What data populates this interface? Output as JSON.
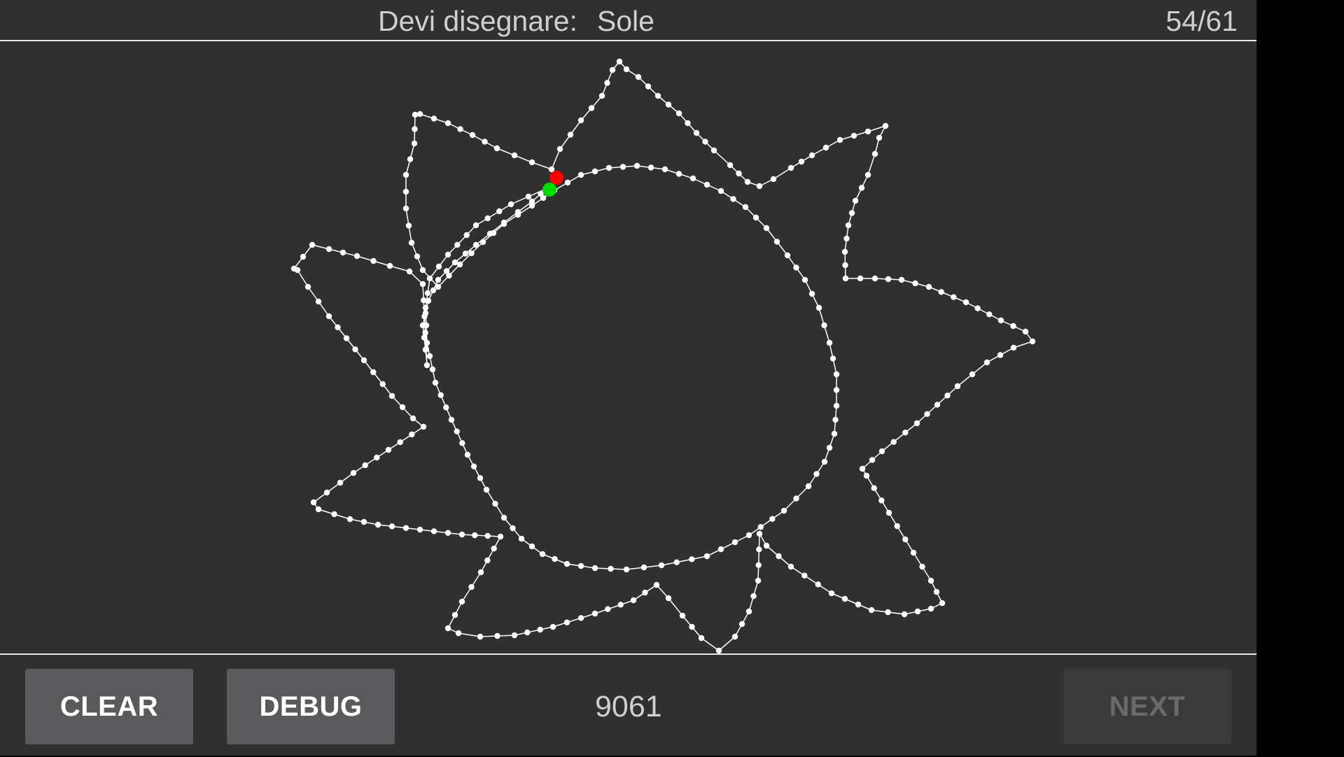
{
  "header": {
    "prompt_label": "Devi disegnare:",
    "target_word": "Sole",
    "progress": "54/61"
  },
  "footer": {
    "clear_label": "CLEAR",
    "debug_label": "DEBUG",
    "score": "9061",
    "next_label": "NEXT",
    "next_enabled": false
  },
  "colors": {
    "background": "#303030",
    "stroke": "#ffffff",
    "start_point": "#00dd00",
    "end_point": "#ff0000"
  }
}
